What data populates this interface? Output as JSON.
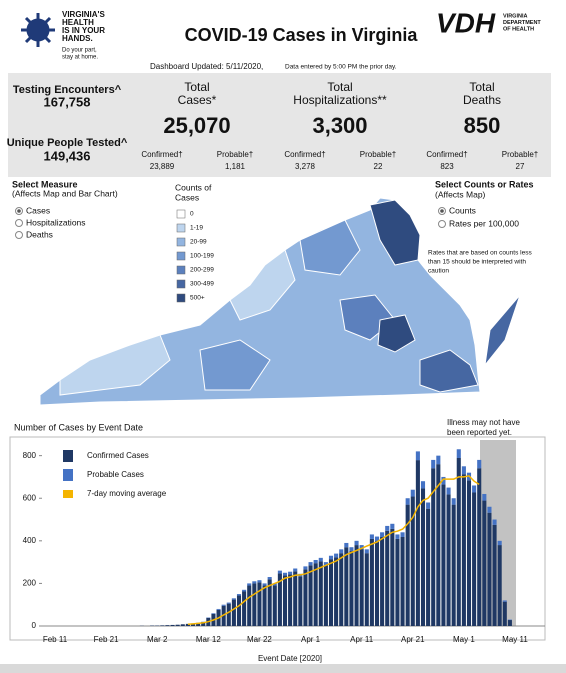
{
  "header": {
    "logo_lines": [
      "VIRGINIA'S",
      "HEALTH",
      "IS IN YOUR",
      "HANDS."
    ],
    "logo_tagline": [
      "Do your part,",
      "stay at home."
    ],
    "title": "COVID-19 Cases in Virginia",
    "vdh": "VDH",
    "vdh_lines": [
      "VIRGINIA",
      "DEPARTMENT",
      "OF HEALTH"
    ],
    "updated": "Dashboard Updated: 5/11/2020,",
    "updated_note": "Data entered by 5:00 PM the prior day."
  },
  "stats": {
    "testing": {
      "label": "Testing Encounters^",
      "value": "167,758"
    },
    "people": {
      "label": "Unique People Tested^",
      "value": "149,436"
    },
    "columns": [
      {
        "title": [
          "Total",
          "Cases*"
        ],
        "value": "25,070",
        "confirmed_label": "Confirmed†",
        "confirmed": "23,889",
        "probable_label": "Probable†",
        "probable": "1,181"
      },
      {
        "title": [
          "Total",
          "Hospitalizations**"
        ],
        "value": "3,300",
        "confirmed_label": "Confirmed†",
        "confirmed": "3,278",
        "probable_label": "Probable†",
        "probable": "22"
      },
      {
        "title": [
          "Total",
          "Deaths"
        ],
        "value": "850",
        "confirmed_label": "Confirmed†",
        "confirmed": "823",
        "probable_label": "Probable†",
        "probable": "27"
      }
    ]
  },
  "measure": {
    "title": "Select Measure",
    "subtitle": "(Affects Map and Bar Chart)",
    "options": [
      "Cases",
      "Hospitalizations",
      "Deaths"
    ],
    "selected": 0
  },
  "map_legend": {
    "title": [
      "Counts of",
      "Cases"
    ],
    "bins": [
      {
        "label": "0",
        "color": "#ffffff"
      },
      {
        "label": "1-19",
        "color": "#bed5ee"
      },
      {
        "label": "20-99",
        "color": "#93b5e0"
      },
      {
        "label": "100-199",
        "color": "#7399d0"
      },
      {
        "label": "200-299",
        "color": "#5c80bd"
      },
      {
        "label": "300-499",
        "color": "#4667a2"
      },
      {
        "label": "500+",
        "color": "#2f4b7f"
      }
    ]
  },
  "rates": {
    "title": "Select Counts or Rates",
    "subtitle": "(Affects Map)",
    "options": [
      "Counts",
      "Rates per 100,000"
    ],
    "selected": 0,
    "note": [
      "Rates that are based on counts less",
      "than 15 should be interpreted with",
      "caution"
    ]
  },
  "chart_data": {
    "type": "bar",
    "stacked": true,
    "title": "Number of Cases by Event Date",
    "xlabel": "Event Date [2020]",
    "annotation": [
      "Illness may not have",
      "been reported yet."
    ],
    "categories": [
      "Feb 11",
      null,
      null,
      null,
      null,
      null,
      null,
      null,
      null,
      null,
      "Feb 21",
      null,
      null,
      null,
      null,
      null,
      null,
      null,
      null,
      null,
      "Mar 2",
      null,
      null,
      null,
      null,
      null,
      null,
      null,
      null,
      null,
      "Mar 12",
      null,
      null,
      null,
      null,
      null,
      null,
      null,
      null,
      null,
      "Mar 22",
      null,
      null,
      null,
      null,
      null,
      null,
      null,
      null,
      null,
      "Apr 1",
      null,
      null,
      null,
      null,
      null,
      null,
      null,
      null,
      null,
      "Apr 11",
      null,
      null,
      null,
      null,
      null,
      null,
      null,
      null,
      null,
      "Apr 21",
      null,
      null,
      null,
      null,
      null,
      null,
      null,
      null,
      null,
      "May 1",
      null,
      null,
      null,
      null,
      null,
      null,
      null,
      null,
      null,
      "May 11"
    ],
    "series": [
      {
        "name": "Confirmed Cases",
        "color": "#1f3864",
        "values": [
          0,
          0,
          0,
          0,
          0,
          0,
          0,
          0,
          0,
          0,
          0,
          0,
          0,
          0,
          0,
          0,
          0,
          1,
          0,
          2,
          2,
          3,
          4,
          5,
          6,
          8,
          10,
          12,
          14,
          19,
          38,
          57,
          76,
          95,
          105,
          124,
          143,
          162,
          190,
          200,
          205,
          190,
          219,
          190,
          247,
          238,
          243,
          257,
          233,
          266,
          285,
          295,
          304,
          285,
          314,
          323,
          342,
          370,
          352,
          380,
          361,
          342,
          409,
          399,
          418,
          447,
          456,
          409,
          418,
          570,
          608,
          779,
          646,
          551,
          741,
          760,
          665,
          618,
          570,
          789,
          713,
          684,
          627,
          741,
          589,
          532,
          475,
          380,
          114,
          28,
          0
        ]
      },
      {
        "name": "Probable Cases",
        "color": "#4472c4",
        "values": [
          0,
          0,
          0,
          0,
          0,
          0,
          0,
          0,
          0,
          0,
          0,
          0,
          0,
          0,
          0,
          0,
          0,
          0,
          0,
          0,
          0,
          0,
          0,
          0,
          0,
          0,
          0,
          0,
          1,
          1,
          2,
          3,
          4,
          5,
          5,
          6,
          7,
          8,
          10,
          10,
          10,
          10,
          11,
          10,
          13,
          12,
          12,
          13,
          12,
          14,
          15,
          15,
          16,
          15,
          16,
          17,
          18,
          20,
          18,
          20,
          19,
          18,
          21,
          21,
          22,
          23,
          24,
          21,
          22,
          30,
          32,
          41,
          34,
          29,
          39,
          40,
          35,
          32,
          30,
          41,
          37,
          36,
          33,
          39,
          31,
          28,
          25,
          20,
          6,
          2,
          0
        ]
      },
      {
        "name": "7-day moving average",
        "color": "#f4b400",
        "type": "line",
        "values": [
          null,
          null,
          null,
          null,
          null,
          null,
          null,
          null,
          null,
          null,
          null,
          null,
          null,
          null,
          null,
          null,
          null,
          null,
          null,
          null,
          null,
          null,
          null,
          null,
          null,
          null,
          8,
          10,
          12,
          15,
          20,
          28,
          38,
          52,
          65,
          80,
          95,
          115,
          135,
          150,
          165,
          180,
          190,
          200,
          210,
          225,
          230,
          238,
          240,
          245,
          255,
          265,
          275,
          285,
          295,
          305,
          320,
          335,
          345,
          355,
          365,
          375,
          385,
          395,
          410,
          425,
          440,
          445,
          455,
          480,
          510,
          560,
          590,
          600,
          630,
          660,
          690,
          690,
          690,
          700,
          700,
          705,
          680,
          665,
          null,
          null,
          null,
          null,
          null,
          null,
          null
        ]
      }
    ],
    "ylim": [
      0,
      850
    ],
    "yticks": [
      0,
      200,
      400,
      600,
      800
    ]
  }
}
